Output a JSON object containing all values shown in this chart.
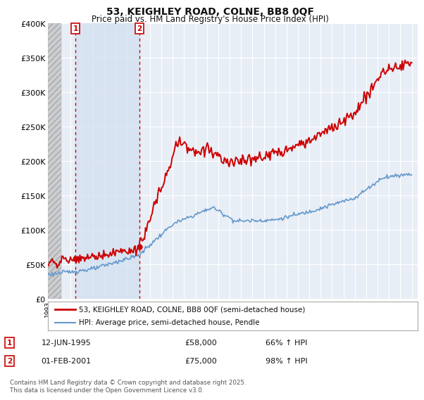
{
  "title": "53, KEIGHLEY ROAD, COLNE, BB8 0QF",
  "subtitle": "Price paid vs. HM Land Registry's House Price Index (HPI)",
  "ylim": [
    0,
    400000
  ],
  "yticks": [
    0,
    50000,
    100000,
    150000,
    200000,
    250000,
    300000,
    350000,
    400000
  ],
  "ytick_labels": [
    "£0",
    "£50K",
    "£100K",
    "£150K",
    "£200K",
    "£250K",
    "£300K",
    "£350K",
    "£400K"
  ],
  "hpi_color": "#6699cc",
  "price_color": "#cc0000",
  "sale1_year": 1995.44,
  "sale1_price": 58000,
  "sale2_year": 2001.08,
  "sale2_price": 75000,
  "legend_line1": "53, KEIGHLEY ROAD, COLNE, BB8 0QF (semi-detached house)",
  "legend_line2": "HPI: Average price, semi-detached house, Pendle",
  "footnote": "Contains HM Land Registry data © Crown copyright and database right 2025.\nThis data is licensed under the Open Government Licence v3.0.",
  "bg_color": "#ffffff",
  "plot_bg_color": "#e8eef6",
  "grid_color": "#ffffff",
  "vline_color": "#cc0000",
  "highlight_color": "#d0dff0",
  "hatch_bg": "#c8c8c8"
}
